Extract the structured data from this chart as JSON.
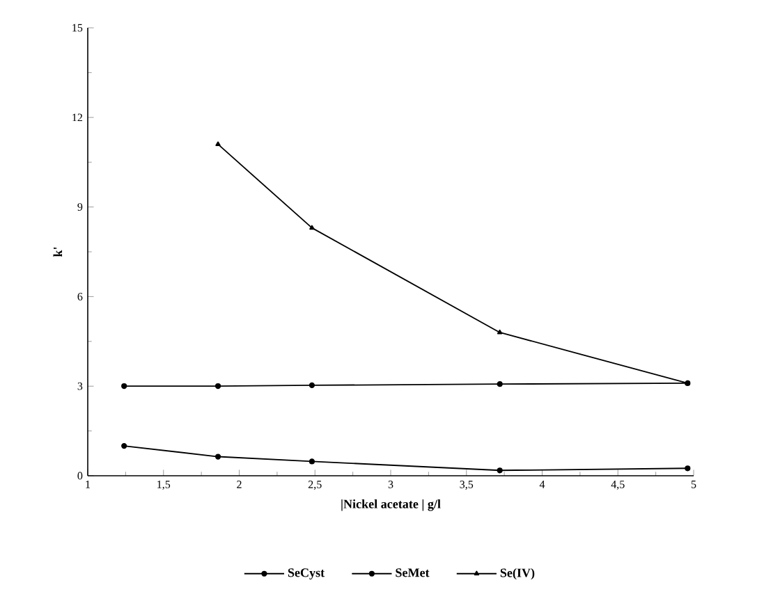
{
  "chart_data": {
    "type": "line",
    "xlabel": "|Nickel acetate | g/l",
    "ylabel": "k'",
    "xlim": [
      1,
      5
    ],
    "xticks": [
      1,
      {
        "value": 1.5,
        "label": "1,5"
      },
      2,
      {
        "value": 2.5,
        "label": "2,5"
      },
      3,
      {
        "value": 3.5,
        "label": "3,5"
      },
      4,
      {
        "value": 4.5,
        "label": "4,5"
      },
      5
    ],
    "ylim": [
      0,
      15
    ],
    "yticks": [
      0,
      3,
      6,
      9,
      12,
      15
    ],
    "grid": false,
    "legend": "bottom",
    "series": [
      {
        "name": "SeCyst",
        "color": "#000000",
        "marker": "circle",
        "x": [
          1.24,
          1.86,
          2.48,
          3.72,
          4.96
        ],
        "values": [
          1.0,
          0.64,
          0.48,
          0.18,
          0.25
        ]
      },
      {
        "name": "SeMet",
        "color": "#000000",
        "marker": "circle",
        "x": [
          1.24,
          1.86,
          2.48,
          3.72,
          4.96
        ],
        "values": [
          3.0,
          3.0,
          3.03,
          3.07,
          3.1
        ]
      },
      {
        "name": "Se(IV)",
        "color": "#000000",
        "marker": "triangle",
        "x": [
          1.86,
          2.48,
          3.72,
          4.96
        ],
        "values": [
          11.1,
          8.3,
          4.8,
          3.1
        ]
      }
    ]
  }
}
